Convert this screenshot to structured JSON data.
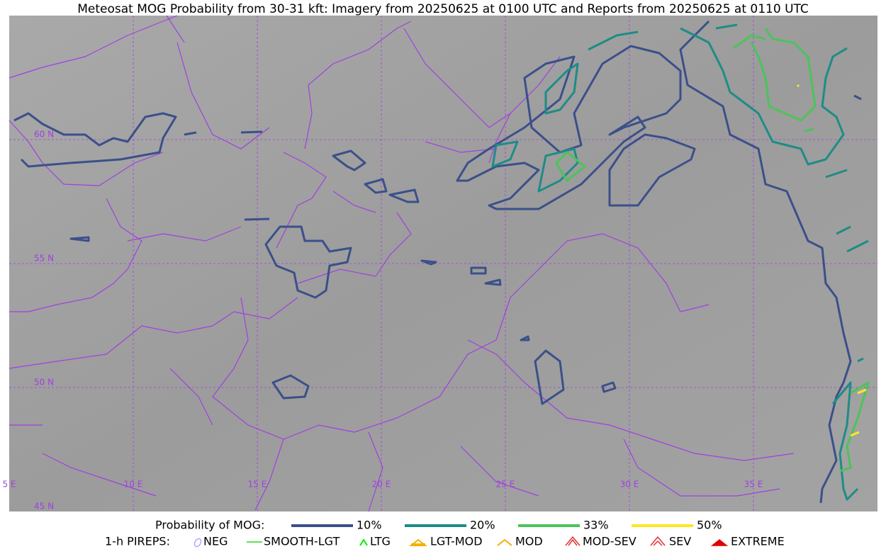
{
  "title": "Meteosat MOG Probability from 30-31 kft: Imagery from 20250625 at 0100 UTC and Reports from 20250625 at 0110 UTC",
  "map": {
    "lat_labels": [
      "60 N",
      "55 N",
      "50 N",
      "45 N"
    ],
    "lon_labels": [
      "5 E",
      "10 E",
      "15 E",
      "20 E",
      "25 E",
      "30 E",
      "35 E"
    ]
  },
  "legend": {
    "probability": {
      "label": "Probability of MOG:",
      "items": [
        {
          "label": "10%",
          "color": "#3b508a"
        },
        {
          "label": "20%",
          "color": "#1e8c86"
        },
        {
          "label": "33%",
          "color": "#4cc35a"
        },
        {
          "label": "50%",
          "color": "#fde725"
        }
      ]
    },
    "pireps": {
      "label": "1-h PIREPS:",
      "items": [
        "NEG",
        "SMOOTH-LGT",
        "LTG",
        "LGT-MOD",
        "MOD",
        "MOD-SEV",
        "SEV",
        "EXTREME"
      ]
    }
  }
}
